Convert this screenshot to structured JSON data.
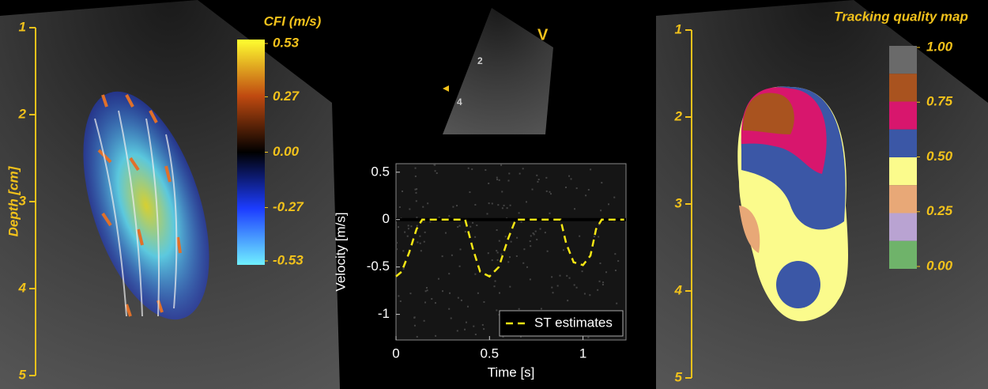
{
  "left_panel": {
    "depth_label": "Depth [cm]",
    "depth_lim": [
      1,
      5
    ],
    "depth_ticks": [
      1,
      2,
      3,
      4,
      5
    ],
    "colorbar_title": "CFI (m/s)",
    "colorbar_lim": [
      -0.53,
      0.53
    ],
    "colorbar_ticks": [
      0.53,
      0.27,
      {
        "value": 0,
        "label": "0.00"
      },
      -0.27,
      -0.53
    ]
  },
  "middle_image": {
    "labels": [
      "V",
      "2",
      "4"
    ]
  },
  "chart_data": {
    "type": "line",
    "xlabel": "Time [s]",
    "ylabel": "Velocity [m/s]",
    "xlim": [
      0,
      1.23
    ],
    "xticks": [
      0,
      0.5,
      1
    ],
    "ylim": [
      -1.27,
      0.59
    ],
    "yticks": [
      -1,
      -0.5,
      0,
      0.5
    ],
    "x": [
      0,
      0.03,
      0.07,
      0.11,
      0.14,
      0.2,
      0.3,
      0.37,
      0.41,
      0.45,
      0.5,
      0.55,
      0.6,
      0.64,
      0.7,
      0.8,
      0.88,
      0.91,
      0.95,
      1.0,
      1.04,
      1.07,
      1.1,
      1.15,
      1.22
    ],
    "series": [
      {
        "name": "ST estimates",
        "color": "#f5e614",
        "values": [
          -0.6,
          -0.55,
          -0.35,
          -0.1,
          0,
          0,
          0,
          0,
          -0.3,
          -0.55,
          -0.6,
          -0.5,
          -0.2,
          0,
          0,
          0,
          0,
          -0.25,
          -0.45,
          -0.48,
          -0.38,
          -0.1,
          0,
          0,
          0
        ]
      }
    ]
  },
  "right_panel": {
    "depth_lim": [
      1,
      5
    ],
    "depth_ticks": [
      1,
      2,
      3,
      4,
      5
    ],
    "colorbar_title": "Tracking quality map",
    "colorbar_lim": [
      0,
      1
    ],
    "colorbar_ticks": [
      {
        "value": 1,
        "label": "1.00"
      },
      0.75,
      {
        "value": 0.5,
        "label": "0.50"
      },
      0.25,
      {
        "value": 0,
        "label": "0.00"
      }
    ],
    "colorbar_colors": [
      "#6a6a6a",
      "#a9531f",
      "#d8166d",
      "#3b57a6",
      "#fbfb8c",
      "#e8a877",
      "#b9a3d2",
      "#6fb36a"
    ]
  }
}
